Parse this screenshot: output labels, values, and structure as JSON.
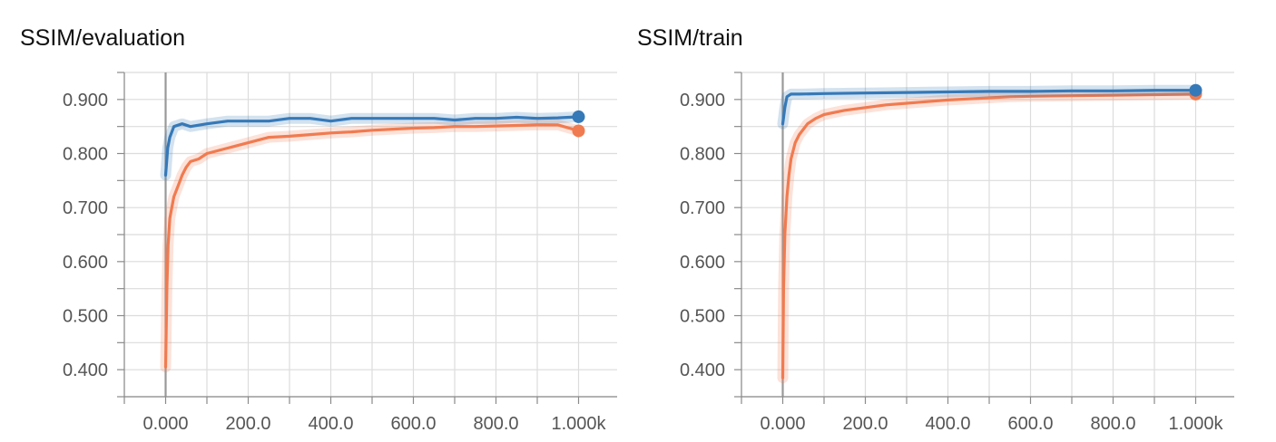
{
  "colors": {
    "blue": "#3679b8",
    "orange": "#f07b50",
    "grid": "#dcdcdc",
    "axis": "#8a8a8a",
    "zero_line": "#999999"
  },
  "chart_data": [
    {
      "type": "line",
      "title": "SSIM/evaluation",
      "xlim": [
        -100,
        1100
      ],
      "ylim": [
        0.35,
        0.95
      ],
      "x_ticks": [
        0,
        200,
        400,
        600,
        800,
        1000
      ],
      "x_tick_labels": [
        "0.000",
        "200.0",
        "400.0",
        "600.0",
        "800.0",
        "1.000k"
      ],
      "y_ticks": [
        0.4,
        0.5,
        0.6,
        0.7,
        0.8,
        0.9
      ],
      "y_tick_labels": [
        "0.400",
        "0.500",
        "0.600",
        "0.700",
        "0.800",
        "0.900"
      ],
      "grid": true,
      "legend": "none",
      "series": [
        {
          "color": "#3679b8",
          "x": [
            0,
            5,
            10,
            20,
            40,
            60,
            100,
            150,
            200,
            250,
            300,
            350,
            400,
            450,
            500,
            550,
            600,
            650,
            700,
            750,
            800,
            850,
            900,
            950,
            1000
          ],
          "y": [
            0.76,
            0.81,
            0.83,
            0.85,
            0.855,
            0.85,
            0.855,
            0.86,
            0.86,
            0.86,
            0.865,
            0.865,
            0.86,
            0.865,
            0.865,
            0.865,
            0.865,
            0.865,
            0.862,
            0.865,
            0.865,
            0.867,
            0.865,
            0.866,
            0.868
          ]
        },
        {
          "color": "#f07b50",
          "x": [
            0,
            3,
            6,
            10,
            15,
            20,
            30,
            40,
            50,
            60,
            80,
            100,
            150,
            200,
            250,
            300,
            350,
            400,
            450,
            500,
            550,
            600,
            650,
            700,
            750,
            800,
            850,
            900,
            950,
            1000
          ],
          "y": [
            0.405,
            0.55,
            0.63,
            0.68,
            0.7,
            0.72,
            0.74,
            0.76,
            0.775,
            0.785,
            0.79,
            0.8,
            0.81,
            0.82,
            0.83,
            0.832,
            0.835,
            0.838,
            0.84,
            0.843,
            0.845,
            0.847,
            0.848,
            0.85,
            0.85,
            0.851,
            0.852,
            0.853,
            0.853,
            0.842
          ]
        }
      ]
    },
    {
      "type": "line",
      "title": "SSIM/train",
      "xlim": [
        -100,
        1100
      ],
      "ylim": [
        0.35,
        0.95
      ],
      "x_ticks": [
        0,
        200,
        400,
        600,
        800,
        1000
      ],
      "x_tick_labels": [
        "0.000",
        "200.0",
        "400.0",
        "600.0",
        "800.0",
        "1.000k"
      ],
      "y_ticks": [
        0.4,
        0.5,
        0.6,
        0.7,
        0.8,
        0.9
      ],
      "y_tick_labels": [
        "0.400",
        "0.500",
        "0.600",
        "0.700",
        "0.800",
        "0.900"
      ],
      "grid": true,
      "legend": "none",
      "series": [
        {
          "color": "#3679b8",
          "x": [
            0,
            5,
            10,
            20,
            40,
            100,
            200,
            300,
            400,
            500,
            600,
            700,
            800,
            900,
            1000
          ],
          "y": [
            0.855,
            0.885,
            0.905,
            0.91,
            0.91,
            0.911,
            0.912,
            0.913,
            0.914,
            0.915,
            0.915,
            0.916,
            0.916,
            0.917,
            0.917
          ]
        },
        {
          "color": "#f07b50",
          "x": [
            0,
            2,
            5,
            10,
            15,
            20,
            30,
            40,
            50,
            60,
            80,
            100,
            150,
            200,
            250,
            300,
            350,
            400,
            450,
            500,
            550,
            600,
            700,
            800,
            900,
            1000
          ],
          "y": [
            0.385,
            0.55,
            0.65,
            0.72,
            0.76,
            0.79,
            0.82,
            0.835,
            0.845,
            0.855,
            0.865,
            0.872,
            0.88,
            0.885,
            0.89,
            0.893,
            0.896,
            0.899,
            0.901,
            0.903,
            0.905,
            0.906,
            0.907,
            0.908,
            0.909,
            0.91
          ]
        }
      ]
    }
  ]
}
